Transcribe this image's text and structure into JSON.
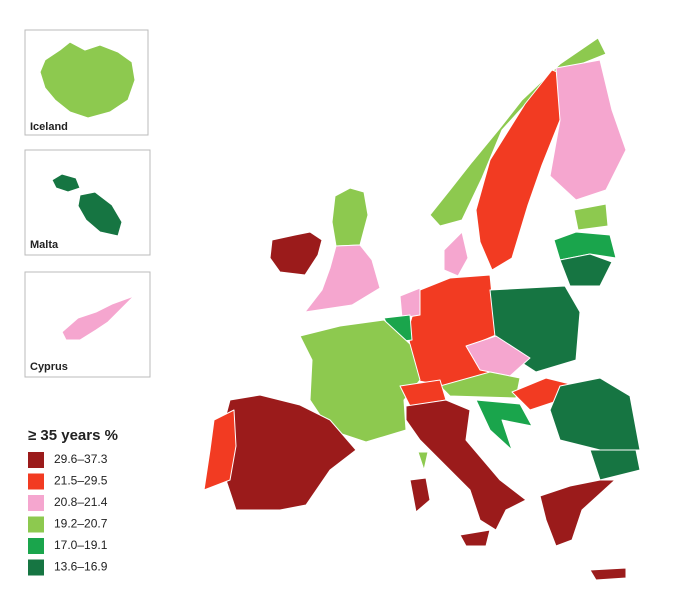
{
  "insets": [
    {
      "label": "Iceland"
    },
    {
      "label": "Malta"
    },
    {
      "label": "Cyprus"
    }
  ],
  "legend": {
    "title": "≥ 35 years %",
    "items": [
      {
        "label": "29.6–37.3",
        "color": "#9b1b1b"
      },
      {
        "label": "21.5–29.5",
        "color": "#f23b22"
      },
      {
        "label": "20.8–21.4",
        "color": "#f5a6cf"
      },
      {
        "label": "19.2–20.7",
        "color": "#8dc94f"
      },
      {
        "label": "17.0–19.1",
        "color": "#1aa54c"
      },
      {
        "label": "13.6–16.9",
        "color": "#167542"
      }
    ]
  }
}
